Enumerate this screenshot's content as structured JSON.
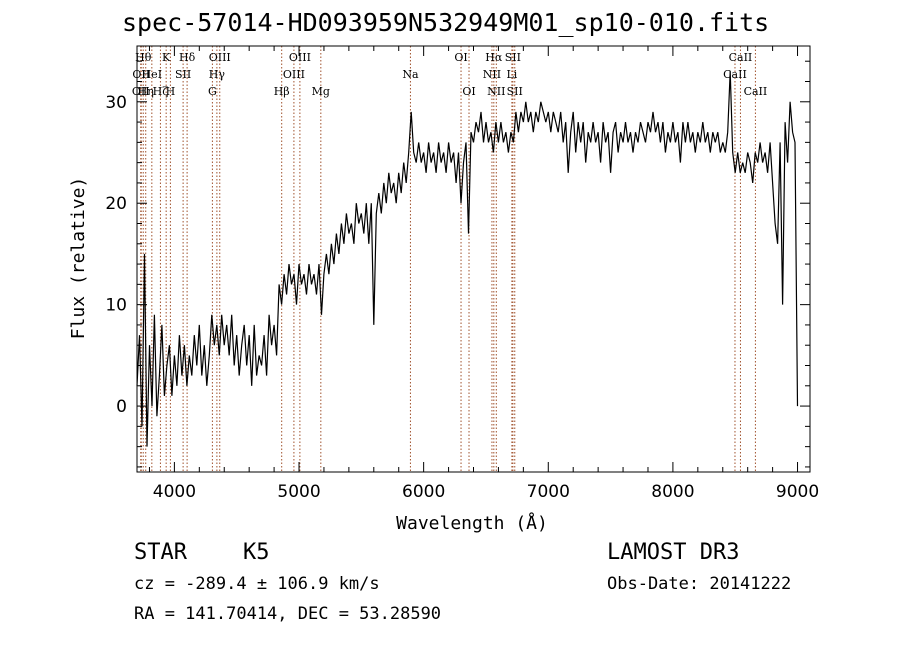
{
  "title": "spec-57014-HD093959N532949M01_sp10-010.fits",
  "info": {
    "object_class": "STAR",
    "subclass": "K5",
    "survey": "LAMOST DR3",
    "cz_text": "cz = -289.4 ± 106.9 km/s",
    "obs_date_text": "Obs-Date: 20141222",
    "radec_text": "RA = 141.70414, DEC =  53.28590"
  },
  "chart_data": {
    "type": "line",
    "xlabel": "Wavelength (Å)",
    "ylabel": "Flux (relative)",
    "xlim": [
      3700,
      9100
    ],
    "ylim": [
      -6.5,
      35.5
    ],
    "xticks": [
      4000,
      5000,
      6000,
      7000,
      8000,
      9000
    ],
    "yticks": [
      0,
      10,
      20,
      30
    ],
    "grid": false,
    "line_color": "#000000",
    "marker_color": "#a0522d",
    "series": [
      {
        "points": [
          [
            3700,
            2
          ],
          [
            3720,
            7
          ],
          [
            3740,
            -2
          ],
          [
            3760,
            15
          ],
          [
            3780,
            -4
          ],
          [
            3800,
            6
          ],
          [
            3820,
            0
          ],
          [
            3840,
            9
          ],
          [
            3860,
            -1
          ],
          [
            3880,
            3
          ],
          [
            3900,
            8
          ],
          [
            3920,
            1
          ],
          [
            3940,
            4
          ],
          [
            3960,
            6
          ],
          [
            3980,
            1
          ],
          [
            4000,
            5
          ],
          [
            4020,
            2
          ],
          [
            4040,
            7
          ],
          [
            4060,
            3
          ],
          [
            4080,
            6
          ],
          [
            4100,
            2
          ],
          [
            4120,
            5
          ],
          [
            4140,
            3
          ],
          [
            4160,
            7
          ],
          [
            4180,
            4
          ],
          [
            4200,
            8
          ],
          [
            4220,
            3
          ],
          [
            4240,
            6
          ],
          [
            4260,
            2
          ],
          [
            4280,
            5
          ],
          [
            4300,
            9
          ],
          [
            4320,
            6
          ],
          [
            4340,
            8
          ],
          [
            4360,
            5
          ],
          [
            4380,
            9
          ],
          [
            4400,
            6
          ],
          [
            4420,
            8
          ],
          [
            4440,
            5
          ],
          [
            4460,
            9
          ],
          [
            4480,
            4
          ],
          [
            4500,
            7
          ],
          [
            4520,
            3
          ],
          [
            4540,
            6
          ],
          [
            4560,
            8
          ],
          [
            4580,
            4
          ],
          [
            4600,
            7
          ],
          [
            4620,
            2
          ],
          [
            4640,
            8
          ],
          [
            4660,
            3
          ],
          [
            4680,
            5
          ],
          [
            4700,
            4
          ],
          [
            4720,
            7
          ],
          [
            4740,
            3
          ],
          [
            4760,
            9
          ],
          [
            4780,
            6
          ],
          [
            4800,
            8
          ],
          [
            4820,
            5
          ],
          [
            4840,
            12
          ],
          [
            4860,
            10
          ],
          [
            4880,
            13
          ],
          [
            4900,
            11
          ],
          [
            4920,
            14
          ],
          [
            4940,
            12
          ],
          [
            4960,
            13
          ],
          [
            4980,
            10
          ],
          [
            5000,
            14
          ],
          [
            5020,
            12
          ],
          [
            5040,
            13
          ],
          [
            5060,
            11
          ],
          [
            5080,
            14
          ],
          [
            5100,
            12
          ],
          [
            5120,
            13
          ],
          [
            5140,
            11
          ],
          [
            5160,
            14
          ],
          [
            5180,
            9
          ],
          [
            5200,
            13
          ],
          [
            5220,
            15
          ],
          [
            5240,
            13
          ],
          [
            5260,
            16
          ],
          [
            5280,
            14
          ],
          [
            5300,
            17
          ],
          [
            5320,
            15
          ],
          [
            5340,
            18
          ],
          [
            5360,
            16
          ],
          [
            5380,
            19
          ],
          [
            5400,
            17
          ],
          [
            5420,
            18
          ],
          [
            5440,
            16
          ],
          [
            5460,
            20
          ],
          [
            5480,
            18
          ],
          [
            5500,
            19
          ],
          [
            5520,
            17
          ],
          [
            5540,
            20
          ],
          [
            5560,
            16
          ],
          [
            5580,
            20
          ],
          [
            5600,
            8
          ],
          [
            5620,
            19
          ],
          [
            5640,
            21
          ],
          [
            5660,
            19
          ],
          [
            5680,
            22
          ],
          [
            5700,
            20
          ],
          [
            5720,
            23
          ],
          [
            5740,
            21
          ],
          [
            5760,
            22
          ],
          [
            5780,
            20
          ],
          [
            5800,
            23
          ],
          [
            5820,
            21
          ],
          [
            5840,
            24
          ],
          [
            5860,
            22
          ],
          [
            5880,
            25
          ],
          [
            5900,
            29
          ],
          [
            5920,
            25
          ],
          [
            5940,
            24
          ],
          [
            5960,
            26
          ],
          [
            5980,
            24
          ],
          [
            6000,
            25
          ],
          [
            6020,
            23
          ],
          [
            6040,
            26
          ],
          [
            6060,
            24
          ],
          [
            6080,
            25
          ],
          [
            6100,
            23
          ],
          [
            6120,
            26
          ],
          [
            6140,
            24
          ],
          [
            6160,
            25
          ],
          [
            6180,
            23
          ],
          [
            6200,
            26
          ],
          [
            6220,
            24
          ],
          [
            6240,
            25
          ],
          [
            6260,
            22
          ],
          [
            6280,
            25
          ],
          [
            6300,
            20
          ],
          [
            6320,
            24
          ],
          [
            6340,
            26
          ],
          [
            6360,
            17
          ],
          [
            6380,
            27
          ],
          [
            6400,
            26
          ],
          [
            6420,
            28
          ],
          [
            6440,
            27
          ],
          [
            6460,
            29
          ],
          [
            6480,
            26
          ],
          [
            6500,
            28
          ],
          [
            6520,
            26
          ],
          [
            6540,
            27
          ],
          [
            6560,
            25
          ],
          [
            6580,
            28
          ],
          [
            6600,
            26
          ],
          [
            6620,
            28
          ],
          [
            6640,
            26
          ],
          [
            6660,
            27
          ],
          [
            6680,
            25
          ],
          [
            6700,
            27
          ],
          [
            6720,
            26
          ],
          [
            6740,
            29
          ],
          [
            6760,
            27
          ],
          [
            6780,
            29
          ],
          [
            6800,
            28
          ],
          [
            6820,
            30
          ],
          [
            6840,
            28
          ],
          [
            6860,
            29
          ],
          [
            6880,
            27
          ],
          [
            6900,
            29
          ],
          [
            6920,
            28
          ],
          [
            6940,
            30
          ],
          [
            6960,
            29
          ],
          [
            6980,
            28
          ],
          [
            7000,
            29
          ],
          [
            7020,
            27
          ],
          [
            7040,
            29
          ],
          [
            7060,
            28
          ],
          [
            7080,
            27
          ],
          [
            7100,
            29
          ],
          [
            7120,
            26
          ],
          [
            7140,
            28
          ],
          [
            7160,
            23
          ],
          [
            7180,
            27
          ],
          [
            7200,
            29
          ],
          [
            7220,
            25
          ],
          [
            7240,
            28
          ],
          [
            7260,
            26
          ],
          [
            7280,
            28
          ],
          [
            7300,
            24
          ],
          [
            7320,
            27
          ],
          [
            7340,
            26
          ],
          [
            7360,
            28
          ],
          [
            7380,
            26
          ],
          [
            7400,
            27
          ],
          [
            7420,
            24
          ],
          [
            7440,
            28
          ],
          [
            7460,
            26
          ],
          [
            7480,
            27
          ],
          [
            7500,
            23
          ],
          [
            7520,
            27
          ],
          [
            7540,
            28
          ],
          [
            7560,
            25
          ],
          [
            7580,
            27
          ],
          [
            7600,
            26
          ],
          [
            7620,
            28
          ],
          [
            7640,
            26
          ],
          [
            7660,
            27
          ],
          [
            7680,
            25
          ],
          [
            7700,
            27
          ],
          [
            7720,
            26
          ],
          [
            7740,
            28
          ],
          [
            7760,
            27
          ],
          [
            7780,
            26
          ],
          [
            7800,
            28
          ],
          [
            7820,
            27
          ],
          [
            7840,
            29
          ],
          [
            7860,
            27
          ],
          [
            7880,
            28
          ],
          [
            7900,
            26
          ],
          [
            7920,
            28
          ],
          [
            7940,
            25
          ],
          [
            7960,
            27
          ],
          [
            7980,
            26
          ],
          [
            8000,
            28
          ],
          [
            8020,
            26
          ],
          [
            8040,
            27
          ],
          [
            8060,
            24
          ],
          [
            8080,
            28
          ],
          [
            8100,
            26
          ],
          [
            8120,
            28
          ],
          [
            8140,
            26
          ],
          [
            8160,
            27
          ],
          [
            8180,
            25
          ],
          [
            8200,
            27
          ],
          [
            8220,
            26
          ],
          [
            8240,
            28
          ],
          [
            8260,
            26
          ],
          [
            8280,
            27
          ],
          [
            8300,
            25
          ],
          [
            8320,
            27
          ],
          [
            8340,
            26
          ],
          [
            8360,
            27
          ],
          [
            8380,
            25
          ],
          [
            8400,
            26
          ],
          [
            8420,
            25
          ],
          [
            8440,
            27
          ],
          [
            8460,
            33
          ],
          [
            8480,
            25
          ],
          [
            8500,
            23
          ],
          [
            8520,
            25
          ],
          [
            8540,
            23
          ],
          [
            8560,
            24
          ],
          [
            8580,
            23
          ],
          [
            8600,
            25
          ],
          [
            8620,
            24
          ],
          [
            8640,
            22
          ],
          [
            8660,
            25
          ],
          [
            8680,
            24
          ],
          [
            8700,
            26
          ],
          [
            8720,
            24
          ],
          [
            8740,
            25
          ],
          [
            8760,
            23
          ],
          [
            8780,
            26
          ],
          [
            8800,
            22
          ],
          [
            8820,
            18
          ],
          [
            8840,
            16
          ],
          [
            8860,
            26
          ],
          [
            8880,
            10
          ],
          [
            8900,
            28
          ],
          [
            8920,
            24
          ],
          [
            8940,
            30
          ],
          [
            8960,
            27
          ],
          [
            8980,
            26
          ],
          [
            9000,
            0
          ]
        ]
      }
    ],
    "line_markers": [
      {
        "wl": 3750,
        "label": "Hθ",
        "row": 1
      },
      {
        "wl": 3734,
        "label": "OII",
        "row": 2
      },
      {
        "wl": 3770,
        "label": "Hη",
        "row": 3
      },
      {
        "wl": 3730,
        "label": "OII",
        "row": 3
      },
      {
        "wl": 3819,
        "label": "HeI",
        "row": 2
      },
      {
        "wl": 3888,
        "label": "Hζ",
        "row": 3
      },
      {
        "wl": 3934,
        "label": "K",
        "row": 1
      },
      {
        "wl": 3968,
        "label": "H",
        "row": 3
      },
      {
        "wl": 4070,
        "label": "SII",
        "row": 2
      },
      {
        "wl": 4102,
        "label": "Hδ",
        "row": 1
      },
      {
        "wl": 4305,
        "label": "G",
        "row": 3
      },
      {
        "wl": 4341,
        "label": "Hγ",
        "row": 2
      },
      {
        "wl": 4364,
        "label": "OIII",
        "row": 1
      },
      {
        "wl": 4861,
        "label": "Hβ",
        "row": 3
      },
      {
        "wl": 4959,
        "label": "OIII",
        "row": 2
      },
      {
        "wl": 5007,
        "label": "OIII",
        "row": 1
      },
      {
        "wl": 5175,
        "label": "Mg",
        "row": 3
      },
      {
        "wl": 5894,
        "label": "Na",
        "row": 2
      },
      {
        "wl": 6300,
        "label": "OI",
        "row": 1
      },
      {
        "wl": 6364,
        "label": "OI",
        "row": 3
      },
      {
        "wl": 6548,
        "label": "NII",
        "row": 2
      },
      {
        "wl": 6563,
        "label": "Hα",
        "row": 1
      },
      {
        "wl": 6583,
        "label": "NII",
        "row": 3
      },
      {
        "wl": 6708,
        "label": "Li",
        "row": 2
      },
      {
        "wl": 6716,
        "label": "SII",
        "row": 1
      },
      {
        "wl": 6731,
        "label": "SII",
        "row": 3
      },
      {
        "wl": 8498,
        "label": "CaII",
        "row": 2
      },
      {
        "wl": 8542,
        "label": "CaII",
        "row": 1
      },
      {
        "wl": 8662,
        "label": "CaII",
        "row": 3
      }
    ]
  }
}
